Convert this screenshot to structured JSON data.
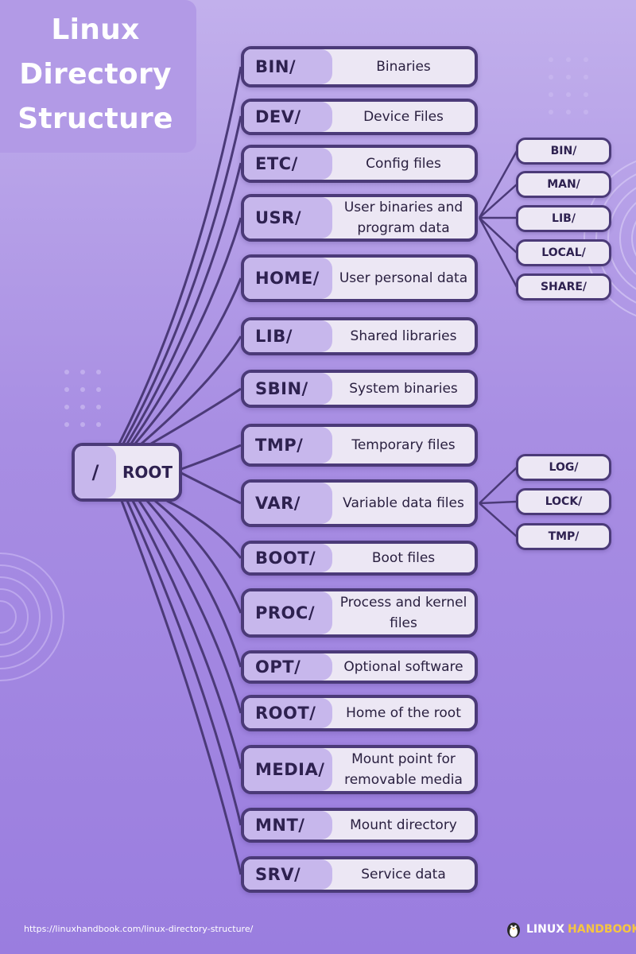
{
  "title": {
    "line1": "Linux",
    "line2": "Directory",
    "line3": "Structure"
  },
  "root": {
    "symbol": "/",
    "label": "ROOT"
  },
  "directories": [
    {
      "name": "BIN/",
      "desc": "Binaries"
    },
    {
      "name": "DEV/",
      "desc": "Device Files"
    },
    {
      "name": "ETC/",
      "desc": "Config files"
    },
    {
      "name": "USR/",
      "desc": "User binaries and program data"
    },
    {
      "name": "HOME/",
      "desc": "User personal data"
    },
    {
      "name": "LIB/",
      "desc": "Shared libraries"
    },
    {
      "name": "SBIN/",
      "desc": "System binaries"
    },
    {
      "name": "TMP/",
      "desc": "Temporary files"
    },
    {
      "name": "VAR/",
      "desc": "Variable data files"
    },
    {
      "name": "BOOT/",
      "desc": "Boot files"
    },
    {
      "name": "PROC/",
      "desc": "Process and kernel files"
    },
    {
      "name": "OPT/",
      "desc": "Optional software"
    },
    {
      "name": "ROOT/",
      "desc": "Home of the root"
    },
    {
      "name": "MEDIA/",
      "desc": "Mount point for removable media"
    },
    {
      "name": "MNT/",
      "desc": "Mount directory"
    },
    {
      "name": "SRV/",
      "desc": "Service data"
    }
  ],
  "usr_children": [
    "BIN/",
    "MAN/",
    "LIB/",
    "LOCAL/",
    "SHARE/"
  ],
  "var_children": [
    "LOG/",
    "LOCK/",
    "TMP/"
  ],
  "footer": {
    "url": "https://linuxhandbook.com/linux-directory-structure/",
    "brand_word1": "LINUX",
    "brand_word2": "HANDBOOK"
  },
  "colors": {
    "background": "#a88ee3",
    "node_border": "#4b3a78",
    "node_fill": "#ece7f4",
    "label_fill": "#c7b7ec",
    "brand_accent": "#f5c542"
  }
}
